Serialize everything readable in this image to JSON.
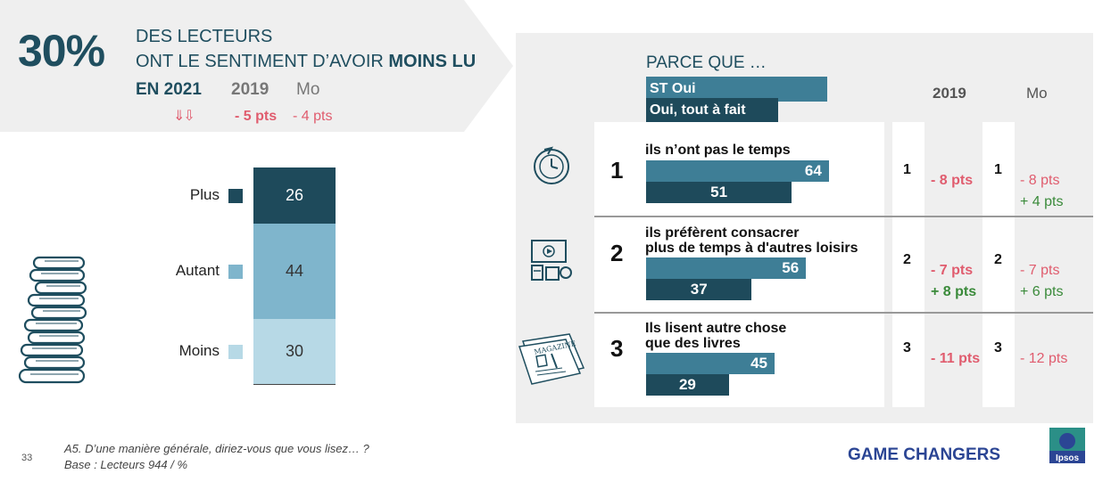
{
  "header": {
    "pct": "30%",
    "line1": "DES LECTEURS",
    "line2_pre": "ONT LE SENTIMENT D’AVOIR ",
    "line2_bold": "MOINS LU",
    "year": "EN 2021",
    "col_2019": "2019",
    "col_mo": "Mo",
    "arrows": "⇓⇩",
    "delta_2019": "- 5 pts",
    "delta_mo": "- 4 pts"
  },
  "stack": {
    "segments": [
      {
        "label": "Plus",
        "value": 26,
        "value_text": "26",
        "color": "#1e4a5b",
        "text_color": "#ffffff"
      },
      {
        "label": "Autant",
        "value": 44,
        "value_text": "44",
        "color": "#7fb5cc",
        "text_color": "#333333"
      },
      {
        "label": "Moins",
        "value": 30,
        "value_text": "30",
        "color": "#b7d9e6",
        "text_color": "#333333"
      }
    ]
  },
  "right": {
    "title": "PARCE QUE …",
    "legend_st": "ST Oui",
    "legend_tf": "Oui, tout à fait",
    "col_2019": "2019",
    "col_mo": "Mo"
  },
  "chart_data": {
    "type": "bar",
    "categories": [
      "ils n’ont pas le temps",
      "ils préfèrent consacrer plus de temps à d'autres loisirs",
      "Ils lisent autre chose que des livres"
    ],
    "series": [
      {
        "name": "ST Oui",
        "values": [
          64,
          56,
          45
        ]
      },
      {
        "name": "Oui, tout à fait",
        "values": [
          51,
          37,
          29
        ]
      }
    ],
    "reasons": [
      {
        "num": "1",
        "label1": "ils n’ont pas le temps",
        "label2": "",
        "st": 64,
        "st_text": "64",
        "tf": 51,
        "tf_text": "51",
        "rank_2019": "1",
        "d2019_a": "- 8 pts",
        "d2019_b": "",
        "rank_mo": "1",
        "dmo_a": "- 8 pts",
        "dmo_b": "+ 4 pts",
        "icon": "clock-icon"
      },
      {
        "num": "2",
        "label1": "ils préfèrent consacrer",
        "label2": "plus de temps à d'autres loisirs",
        "st": 56,
        "st_text": "56",
        "tf": 37,
        "tf_text": "37",
        "rank_2019": "2",
        "d2019_a": "- 7 pts",
        "d2019_b": "+ 8 pts",
        "rank_mo": "2",
        "dmo_a": "- 7 pts",
        "dmo_b": "+ 6 pts",
        "icon": "leisure-icon"
      },
      {
        "num": "3",
        "label1": "Ils lisent autre chose",
        "label2": "que des livres",
        "st": 45,
        "st_text": "45",
        "tf": 29,
        "tf_text": "29",
        "rank_2019": "3",
        "d2019_a": "- 11 pts",
        "d2019_b": "",
        "rank_mo": "3",
        "dmo_a": "- 12 pts",
        "dmo_b": "",
        "icon": "magazine-icon",
        "magazine_text": "MAGAZINE"
      }
    ]
  },
  "footer": {
    "page": "33",
    "question": "A5. D’une manière générale, diriez-vous que vous lisez… ?",
    "base": "Base : Lecteurs 944 / %",
    "brand": "GAME CHANGERS",
    "logo_text": "Ipsos"
  }
}
